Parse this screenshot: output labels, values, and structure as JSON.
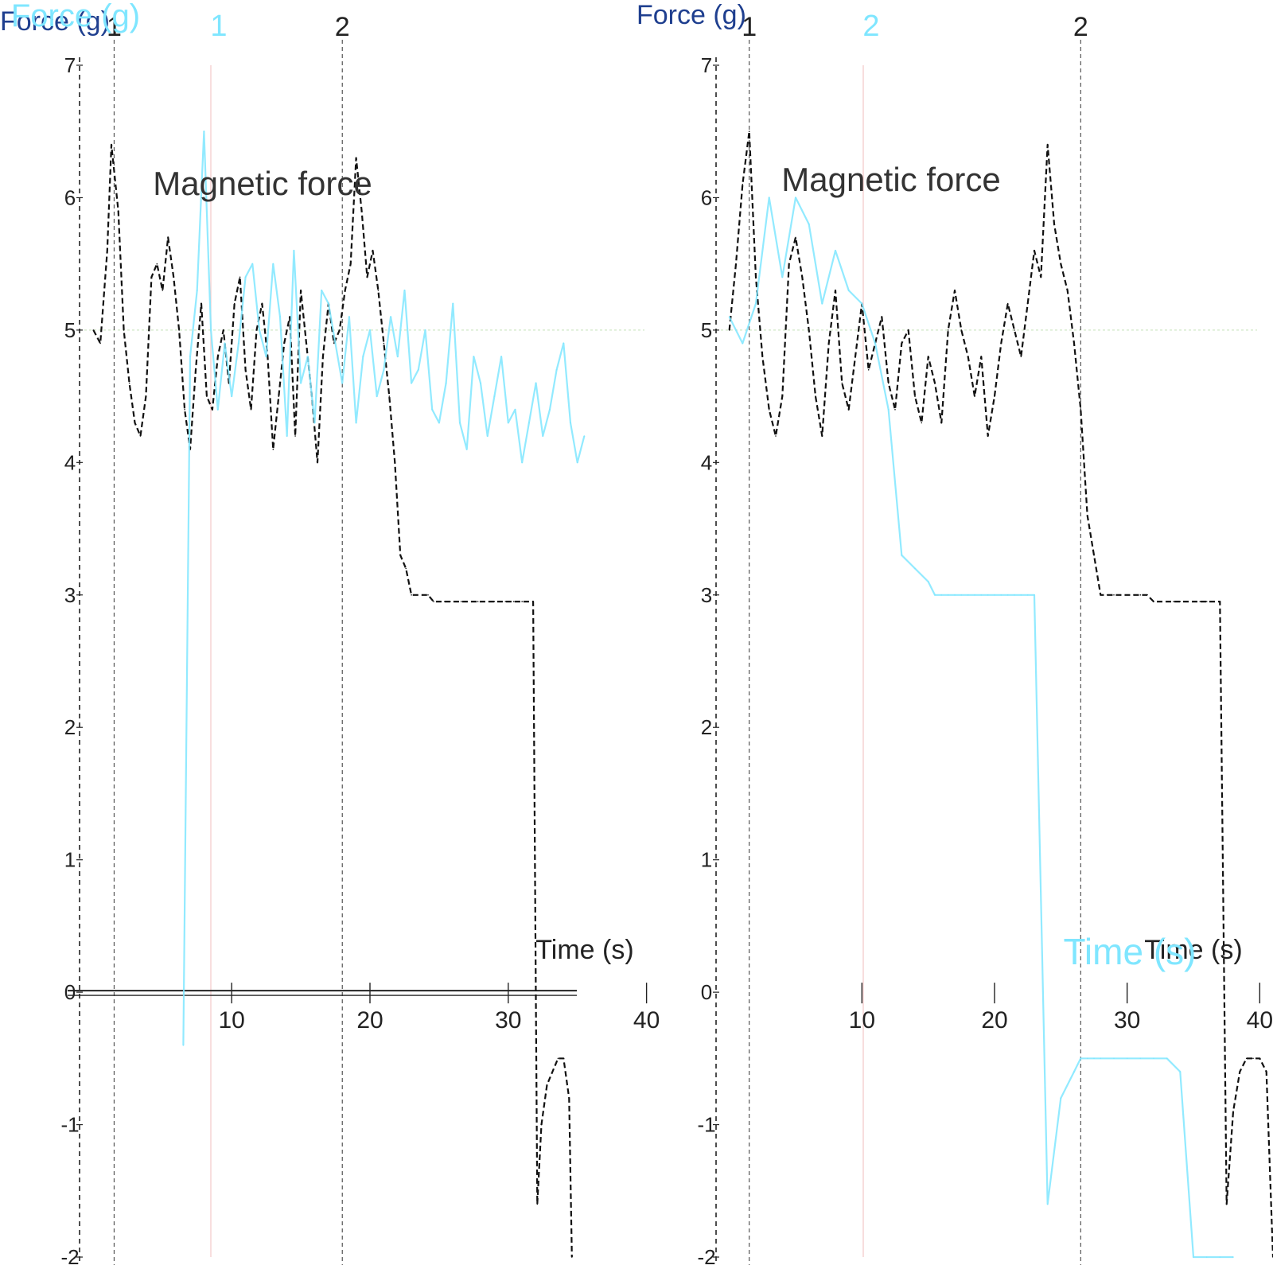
{
  "colors": {
    "force": "#111111",
    "ghost": "#7fe6ff",
    "gridRed": "#f4c9c9",
    "gridGreen": "#cfe7c4",
    "axis": "#222222",
    "title": "#1f3f8f"
  },
  "chart_data": [
    {
      "type": "line",
      "panel": "left",
      "ylabel": "Force (g)",
      "ylabel_ghost": "Force (g)",
      "xlabel": "Time (s)",
      "annotation": "Magnetic force",
      "phase_markers": [
        {
          "label": "1",
          "x": 1.5
        },
        {
          "label": "2",
          "x": 18.0
        }
      ],
      "ghost_marker_label": "1",
      "ylim": [
        -2,
        7
      ],
      "xlim": [
        -1,
        41
      ],
      "y_ticks": [
        "7",
        "6",
        "5",
        "4",
        "3",
        "2",
        "1",
        "0",
        "-1",
        "-2"
      ],
      "x_ticks": [
        {
          "x": 10,
          "label": "10"
        },
        {
          "x": 20,
          "label": "20"
        },
        {
          "x": 30,
          "label": "30"
        },
        {
          "x": 40,
          "label": "40"
        }
      ],
      "baseline": 5,
      "series": [
        {
          "style": "force",
          "x": [
            0,
            0.5,
            1,
            1.3,
            1.8,
            2.2,
            2.6,
            3,
            3.4,
            3.8,
            4.2,
            4.6,
            5,
            5.4,
            5.8,
            6.2,
            6.6,
            7,
            7.4,
            7.8,
            8.2,
            8.6,
            9,
            9.4,
            9.8,
            10.2,
            10.6,
            11,
            11.4,
            11.8,
            12.2,
            12.6,
            13,
            13.4,
            13.8,
            14.2,
            14.6,
            15,
            15.4,
            15.8,
            16.2,
            16.6,
            17,
            17.4,
            17.8,
            18.2,
            18.6,
            19,
            19.4,
            19.8,
            20.2,
            20.6,
            21,
            21.4,
            21.8,
            22.2,
            22.6,
            23,
            23.4,
            23.8,
            24.2,
            24.6,
            25,
            25.4,
            25.8,
            26.2,
            26.6,
            27,
            27.4,
            27.8,
            28.2,
            28.6,
            29,
            29.4,
            29.8,
            30,
            30.4,
            30.8,
            31,
            31.4,
            31.8,
            32.1,
            32.4,
            32.8,
            33.2,
            33.6,
            34,
            34.4,
            34.6
          ],
          "y": [
            5,
            4.9,
            5.6,
            6.4,
            5.9,
            5.0,
            4.6,
            4.3,
            4.2,
            4.5,
            5.4,
            5.5,
            5.3,
            5.7,
            5.4,
            5.0,
            4.4,
            4.1,
            4.7,
            5.2,
            4.5,
            4.4,
            4.8,
            5.0,
            4.6,
            5.2,
            5.4,
            4.7,
            4.4,
            5.0,
            5.2,
            4.8,
            4.1,
            4.5,
            4.9,
            5.1,
            4.2,
            5.3,
            4.9,
            4.5,
            4.0,
            4.8,
            5.2,
            4.9,
            5.0,
            5.3,
            5.5,
            6.3,
            5.9,
            5.4,
            5.6,
            5.3,
            4.9,
            4.5,
            4.0,
            3.3,
            3.2,
            3.0,
            3.0,
            3.0,
            3.0,
            2.95,
            2.95,
            2.95,
            2.95,
            2.95,
            2.95,
            2.95,
            2.95,
            2.95,
            2.95,
            2.95,
            2.95,
            2.95,
            2.95,
            2.95,
            2.95,
            2.95,
            2.95,
            2.95,
            2.95,
            -1.6,
            -1.0,
            -0.7,
            -0.6,
            -0.5,
            -0.5,
            -0.8,
            -2.0
          ]
        },
        {
          "style": "ghost",
          "x": [
            6.5,
            7,
            7.5,
            8,
            8.5,
            9,
            9.5,
            10,
            10.5,
            11,
            11.5,
            12,
            12.5,
            13,
            13.5,
            14,
            14.5,
            15,
            15.5,
            16,
            16.5,
            17,
            17.5,
            18,
            18.5,
            19,
            19.5,
            20,
            20.5,
            21,
            21.5,
            22,
            22.5,
            23,
            23.5,
            24,
            24.5,
            25,
            25.5,
            26,
            26.5,
            27,
            27.5,
            28,
            28.5,
            29,
            29.5,
            30,
            30.5,
            31,
            31.5,
            32,
            32.5,
            33,
            33.5,
            34,
            34.5,
            35,
            35.5
          ],
          "y": [
            -0.4,
            4.8,
            5.3,
            6.5,
            5.0,
            4.4,
            4.9,
            4.5,
            4.9,
            5.4,
            5.5,
            5.0,
            4.8,
            5.5,
            5.1,
            4.2,
            5.6,
            4.6,
            4.8,
            4.3,
            5.3,
            5.2,
            4.9,
            4.6,
            5.1,
            4.3,
            4.8,
            5.0,
            4.5,
            4.7,
            5.1,
            4.8,
            5.3,
            4.6,
            4.7,
            5.0,
            4.4,
            4.3,
            4.6,
            5.2,
            4.3,
            4.1,
            4.8,
            4.6,
            4.2,
            4.5,
            4.8,
            4.3,
            4.4,
            4.0,
            4.3,
            4.6,
            4.2,
            4.4,
            4.7,
            4.9,
            4.3,
            4.0,
            4.2
          ]
        }
      ]
    },
    {
      "type": "line",
      "panel": "right",
      "ylabel": "Force (g)",
      "xlabel": "Time (s)",
      "xlabel_ghost": "Time (s)",
      "annotation": "Magnetic force",
      "phase_markers": [
        {
          "label": "1",
          "x": 1.5
        },
        {
          "label": "2",
          "x": 26.5
        }
      ],
      "ghost_marker_label": "2",
      "ylim": [
        -2,
        7
      ],
      "xlim": [
        -1,
        41
      ],
      "y_ticks": [
        "7",
        "6",
        "5",
        "4",
        "3",
        "2",
        "1",
        "0",
        "-1",
        "-2"
      ],
      "x_ticks": [
        {
          "x": 10,
          "label": "10"
        },
        {
          "x": 20,
          "label": "20"
        },
        {
          "x": 30,
          "label": "30"
        },
        {
          "x": 40,
          "label": "40"
        }
      ],
      "baseline": 5,
      "series": [
        {
          "style": "force",
          "x": [
            0,
            0.5,
            1,
            1.5,
            2,
            2.5,
            3,
            3.5,
            4,
            4.5,
            5,
            5.5,
            6,
            6.5,
            7,
            7.5,
            8,
            8.5,
            9,
            9.5,
            10,
            10.5,
            11,
            11.5,
            12,
            12.5,
            13,
            13.5,
            14,
            14.5,
            15,
            15.5,
            16,
            16.5,
            17,
            17.5,
            18,
            18.5,
            19,
            19.5,
            20,
            20.5,
            21,
            21.5,
            22,
            22.5,
            23,
            23.5,
            24,
            24.5,
            25,
            25.5,
            26,
            26.5,
            27,
            27.5,
            28,
            28.5,
            29,
            29.5,
            30,
            30.5,
            31,
            31.5,
            32,
            32.5,
            33,
            33.5,
            34,
            34.5,
            35,
            35.5,
            36,
            36.5,
            37,
            37.5,
            38,
            38.5,
            39,
            39.5,
            40,
            40.5,
            41
          ],
          "y": [
            5,
            5.5,
            6.1,
            6.5,
            5.4,
            4.8,
            4.4,
            4.2,
            4.5,
            5.5,
            5.7,
            5.4,
            5.0,
            4.5,
            4.2,
            4.9,
            5.3,
            4.6,
            4.4,
            4.8,
            5.2,
            4.7,
            4.9,
            5.1,
            4.6,
            4.4,
            4.9,
            5.0,
            4.5,
            4.3,
            4.8,
            4.6,
            4.3,
            5.0,
            5.3,
            5.0,
            4.8,
            4.5,
            4.8,
            4.2,
            4.5,
            4.9,
            5.2,
            5.0,
            4.8,
            5.2,
            5.6,
            5.4,
            6.4,
            5.8,
            5.5,
            5.3,
            4.9,
            4.4,
            3.6,
            3.3,
            3.0,
            3.0,
            3.0,
            3.0,
            3.0,
            3.0,
            3.0,
            3.0,
            2.95,
            2.95,
            2.95,
            2.95,
            2.95,
            2.95,
            2.95,
            2.95,
            2.95,
            2.95,
            2.95,
            -1.6,
            -0.9,
            -0.6,
            -0.5,
            -0.5,
            -0.5,
            -0.6,
            -2.0
          ]
        },
        {
          "style": "ghost",
          "x": [
            0,
            1,
            2,
            3,
            4,
            5,
            6,
            7,
            8,
            9,
            10,
            11,
            12,
            13,
            14,
            15,
            15.5,
            16,
            16.5,
            17,
            17.5,
            18,
            18.5,
            19,
            19.5,
            20,
            20.5,
            21,
            21.5,
            22,
            22.5,
            23,
            24,
            25,
            26,
            26.5,
            27,
            27.5,
            28,
            29,
            30,
            31,
            32,
            33,
            34,
            35,
            36,
            37,
            38
          ],
          "y": [
            5.1,
            4.9,
            5.2,
            6.0,
            5.4,
            6.0,
            5.8,
            5.2,
            5.6,
            5.3,
            5.2,
            4.9,
            4.4,
            3.3,
            3.2,
            3.1,
            3.0,
            3.0,
            3.0,
            3.0,
            3.0,
            3.0,
            3.0,
            3.0,
            3.0,
            3.0,
            3.0,
            3.0,
            3.0,
            3.0,
            3.0,
            3.0,
            -1.6,
            -0.8,
            -0.6,
            -0.5,
            -0.5,
            -0.5,
            -0.5,
            -0.5,
            -0.5,
            -0.5,
            -0.5,
            -0.5,
            -0.6,
            -2.0,
            -2.0,
            -2.0,
            -2.0
          ]
        }
      ]
    }
  ]
}
